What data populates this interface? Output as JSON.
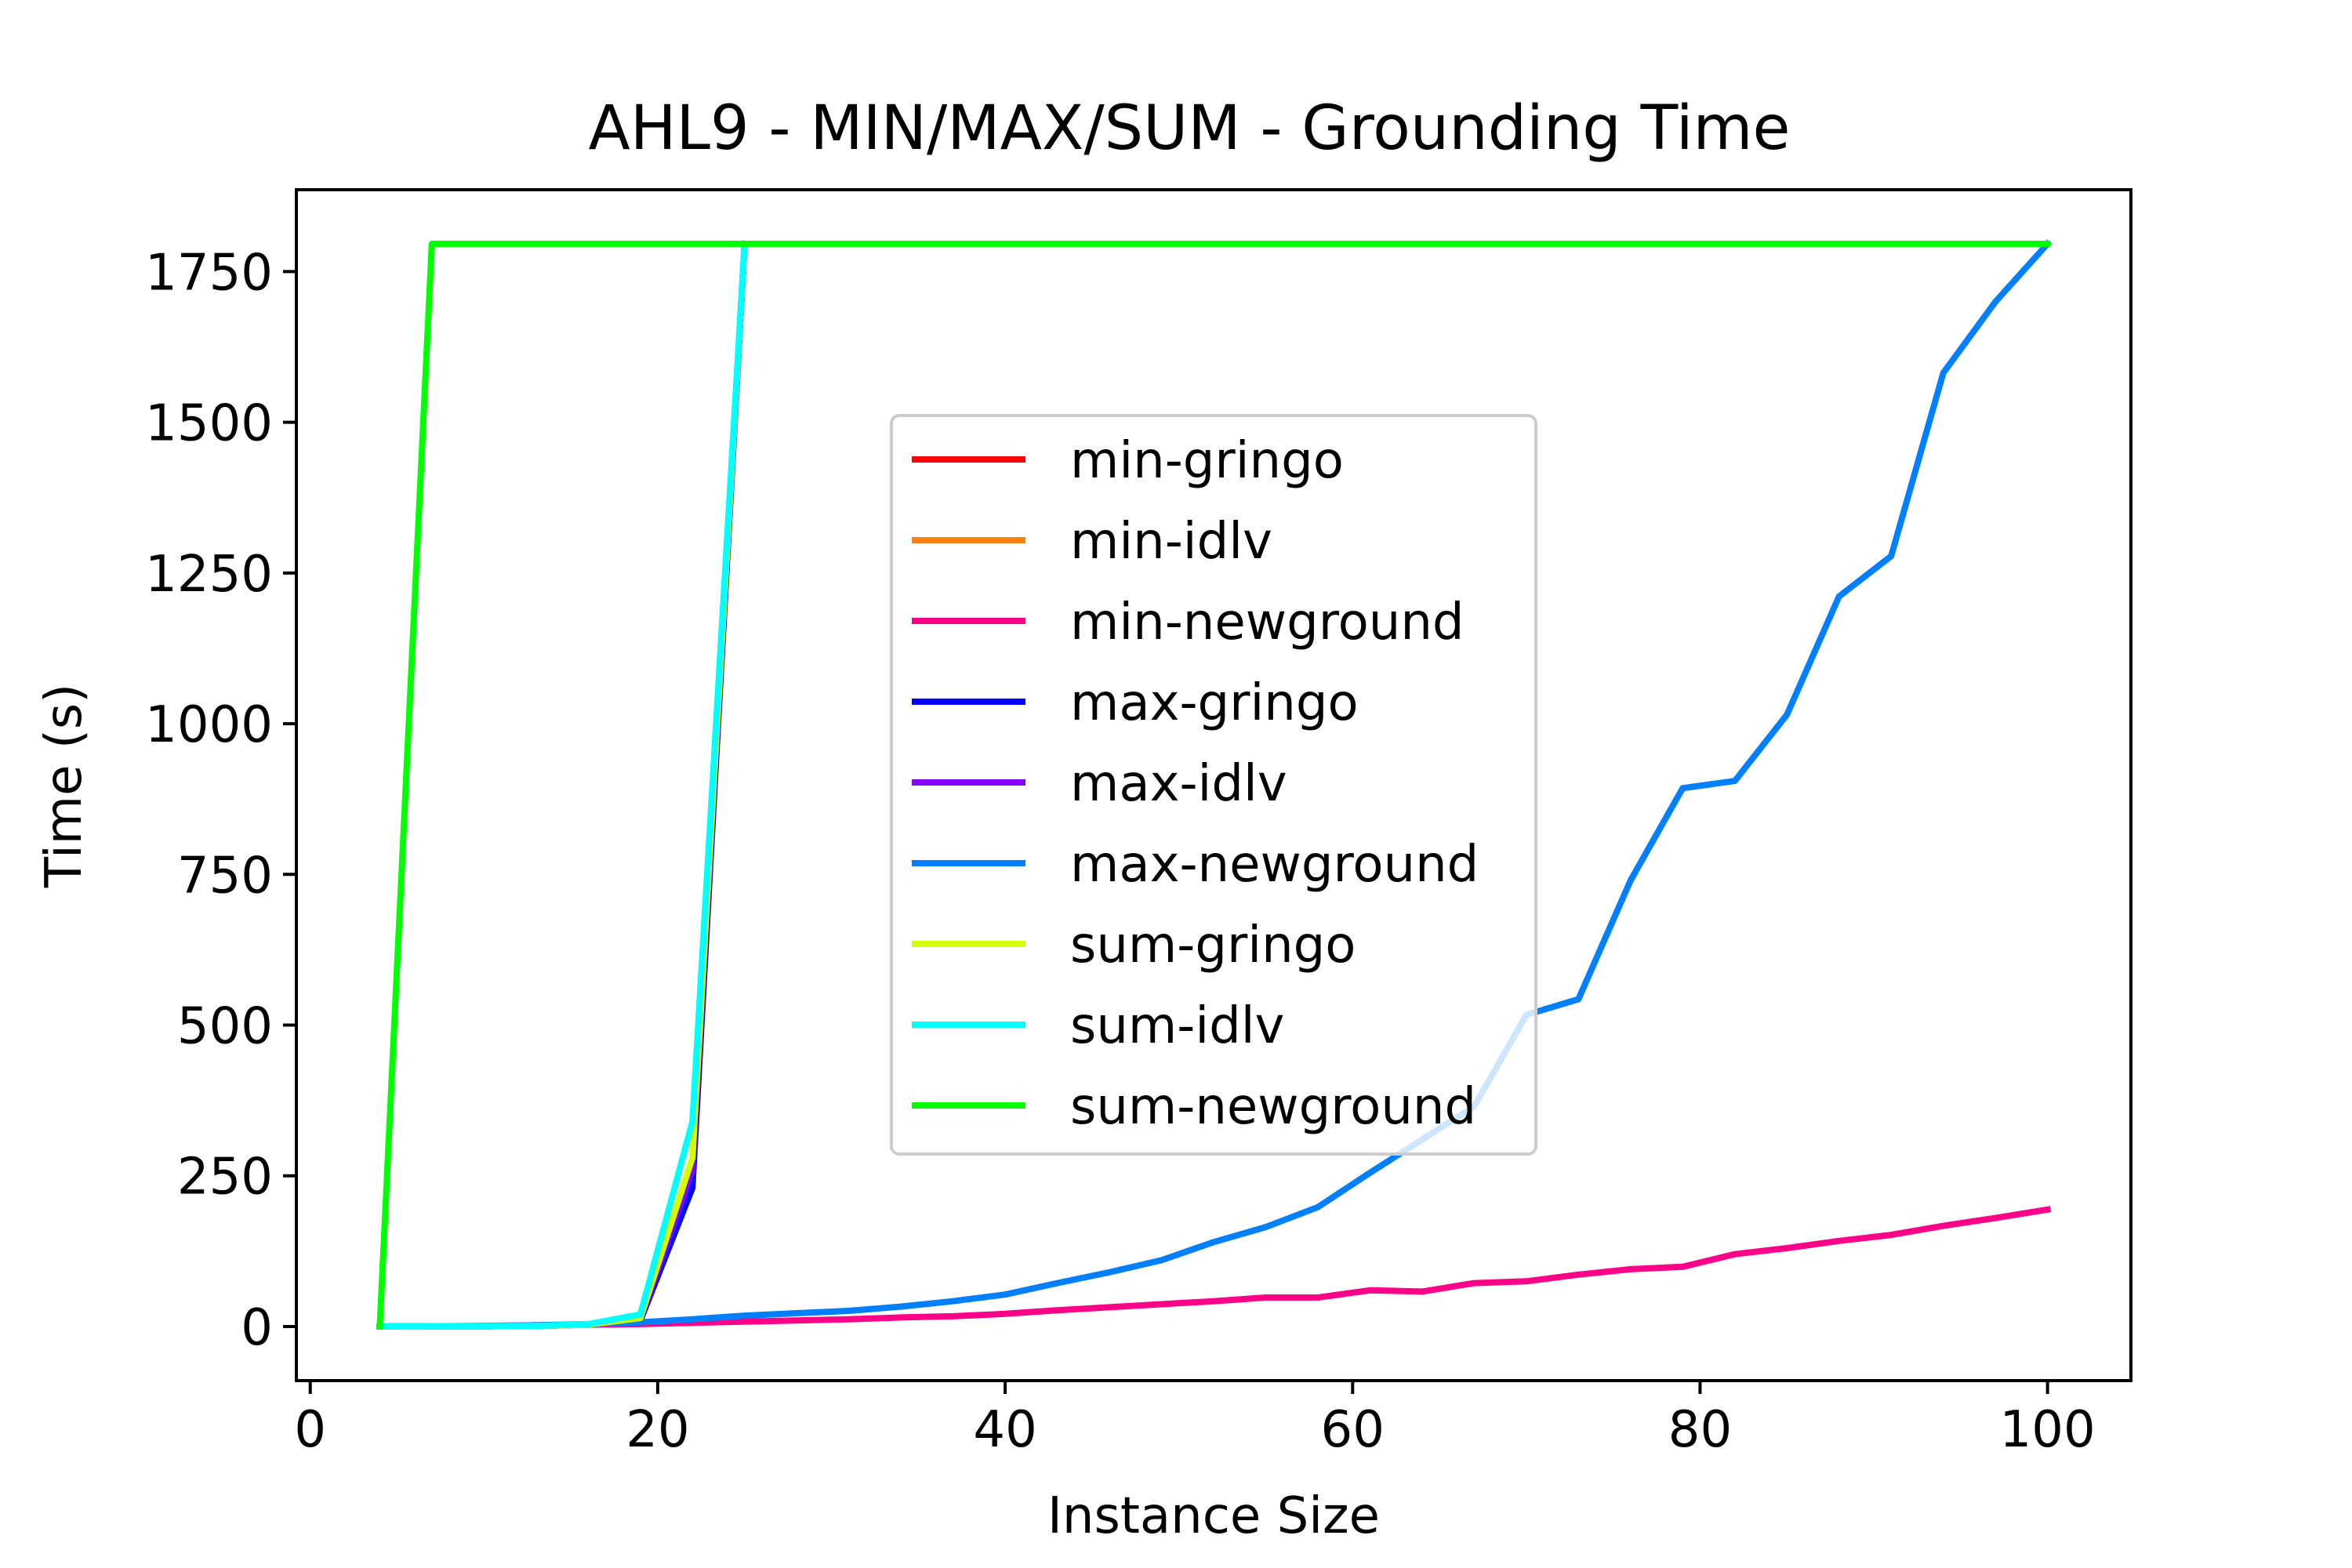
{
  "chart_data": {
    "type": "line",
    "title": "AHL9 - MIN/MAX/SUM - Grounding Time",
    "xlabel": "Instance Size",
    "ylabel": "Time (s)",
    "xlim": [
      -0.8,
      104.8
    ],
    "ylim": [
      -89.8,
      1885.8
    ],
    "xticks": [
      0,
      20,
      40,
      60,
      80,
      100
    ],
    "yticks": [
      0,
      250,
      500,
      750,
      1000,
      1250,
      1500,
      1750
    ],
    "grid": false,
    "legend_position": "center",
    "series": [
      {
        "name": "min-gringo",
        "color": "#ff0000",
        "x": [
          4,
          7,
          10,
          13,
          16,
          19,
          22,
          25
        ],
        "y": [
          0,
          0.2,
          0.5,
          1,
          3,
          12,
          250,
          1796
        ]
      },
      {
        "name": "min-idlv",
        "color": "#ff7f0e",
        "x": [
          4,
          7,
          10,
          13,
          16,
          19,
          22,
          25
        ],
        "y": [
          0,
          0.2,
          0.5,
          1,
          3,
          12,
          255,
          1796
        ]
      },
      {
        "name": "min-newground",
        "color": "#ff0088",
        "x": [
          4,
          7,
          10,
          13,
          16,
          19,
          22,
          25,
          28,
          31,
          34,
          37,
          40,
          43,
          46,
          49,
          52,
          55,
          58,
          61,
          64,
          67,
          70,
          73,
          76,
          79,
          82,
          85,
          88,
          91,
          94,
          97,
          100
        ],
        "y": [
          0,
          0.3,
          1,
          2,
          3,
          4,
          6,
          8,
          10,
          12,
          15,
          17,
          21,
          27,
          32,
          37,
          42,
          48,
          48,
          60,
          58,
          72,
          75,
          86,
          95,
          99,
          120,
          130,
          142,
          152,
          167,
          180,
          194
        ]
      },
      {
        "name": "max-gringo",
        "color": "#0000ff",
        "x": [
          4,
          7,
          10,
          13,
          16,
          19,
          22,
          25
        ],
        "y": [
          0,
          0.2,
          0.5,
          1,
          3,
          10,
          230,
          1796
        ]
      },
      {
        "name": "max-idlv",
        "color": "#8800ff",
        "x": [
          4,
          7,
          10,
          13,
          16,
          19,
          22,
          25
        ],
        "y": [
          0,
          0.2,
          0.5,
          1,
          3,
          11,
          260,
          1796
        ]
      },
      {
        "name": "max-newground",
        "color": "#0080ff",
        "x": [
          4,
          7,
          10,
          13,
          16,
          19,
          22,
          25,
          28,
          31,
          34,
          37,
          40,
          43,
          46,
          49,
          52,
          55,
          58,
          61,
          64,
          67,
          70,
          73,
          76,
          79,
          82,
          85,
          88,
          91,
          94,
          97,
          100
        ],
        "y": [
          0,
          0.5,
          1,
          2,
          4,
          7,
          12,
          18,
          22,
          26,
          33,
          42,
          53,
          72,
          90,
          110,
          140,
          165,
          198,
          255,
          310,
          365,
          517,
          543,
          740,
          893,
          905,
          1015,
          1211,
          1278,
          1582,
          1700,
          1796
        ]
      },
      {
        "name": "sum-gringo",
        "color": "#d4ff00",
        "x": [
          4,
          7,
          10,
          13,
          16,
          19,
          22,
          25
        ],
        "y": [
          0,
          0.2,
          0.5,
          1,
          3,
          14,
          280,
          1796
        ]
      },
      {
        "name": "sum-idlv",
        "color": "#00ffff",
        "x": [
          4,
          7,
          10,
          13,
          16,
          19,
          22,
          25
        ],
        "y": [
          0,
          0.2,
          0.5,
          1,
          4,
          20,
          340,
          1796
        ]
      },
      {
        "name": "sum-newground",
        "color": "#00ff00",
        "x": [
          4,
          7,
          100
        ],
        "y": [
          0,
          1796,
          1796
        ]
      }
    ]
  }
}
